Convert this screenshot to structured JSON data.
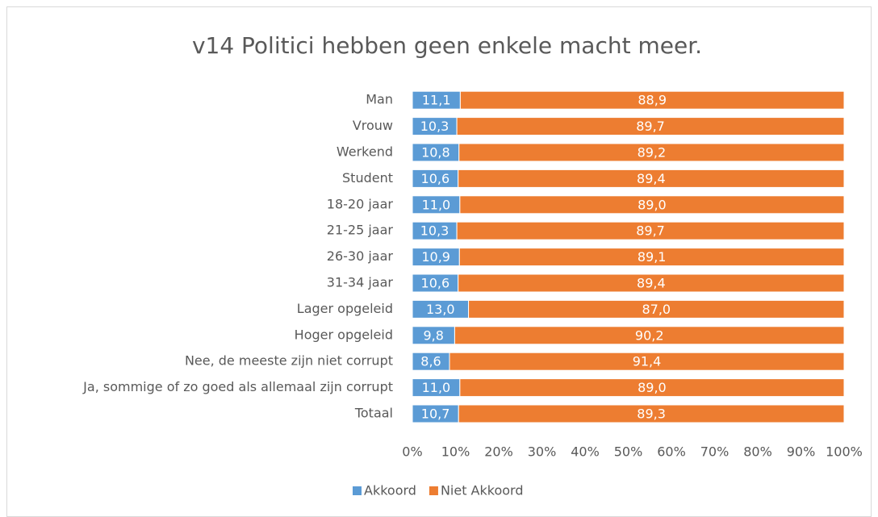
{
  "chart_data": {
    "type": "stacked_bar_horizontal",
    "title": "v14 Politici hebben geen enkele macht meer.",
    "categories": [
      "Man",
      "Vrouw",
      "Werkend",
      "Student",
      "18-20 jaar",
      "21-25 jaar",
      "26-30 jaar",
      "31-34 jaar",
      "Lager opgeleid",
      "Hoger opgeleid",
      "Nee, de meeste zijn niet corrupt",
      "Ja, sommige of zo goed als allemaal zijn corrupt",
      "Totaal"
    ],
    "series": [
      {
        "name": "Akkoord",
        "color": "#5b9bd5",
        "values": [
          11.1,
          10.3,
          10.8,
          10.6,
          11.0,
          10.3,
          10.9,
          10.6,
          13.0,
          9.8,
          8.6,
          11.0,
          10.7
        ],
        "value_labels": [
          "11,1",
          "10,3",
          "10,8",
          "10,6",
          "11,0",
          "10,3",
          "10,9",
          "10,6",
          "13,0",
          "9,8",
          "8,6",
          "11,0",
          "10,7"
        ]
      },
      {
        "name": "Niet Akkoord",
        "color": "#ed7d31",
        "values": [
          88.9,
          89.7,
          89.2,
          89.4,
          89.0,
          89.7,
          89.1,
          89.4,
          87.0,
          90.2,
          91.4,
          89.0,
          89.3
        ],
        "value_labels": [
          "88,9",
          "89,7",
          "89,2",
          "89,4",
          "89,0",
          "89,7",
          "89,1",
          "89,4",
          "87,0",
          "90,2",
          "91,4",
          "89,0",
          "89,3"
        ]
      }
    ],
    "xlim": [
      0,
      100
    ],
    "xticks": [
      {
        "value": 0,
        "label": "0%"
      },
      {
        "value": 10,
        "label": "10%"
      },
      {
        "value": 20,
        "label": "20%"
      },
      {
        "value": 30,
        "label": "30%"
      },
      {
        "value": 40,
        "label": "40%"
      },
      {
        "value": 50,
        "label": "50%"
      },
      {
        "value": 60,
        "label": "60%"
      },
      {
        "value": 70,
        "label": "70%"
      },
      {
        "value": 80,
        "label": "80%"
      },
      {
        "value": 90,
        "label": "90%"
      },
      {
        "value": 100,
        "label": "100%"
      }
    ],
    "legend": "bottom"
  }
}
